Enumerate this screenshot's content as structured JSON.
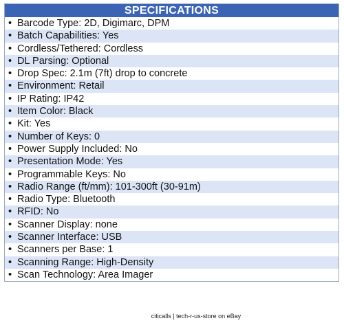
{
  "header": {
    "title": "SPECIFICATIONS"
  },
  "table": {
    "rows": [
      "Barcode Type: 2D, Digimarc, DPM",
      "Batch Capabilities: Yes",
      "Cordless/Tethered: Cordless",
      "DL Parsing: Optional",
      "Drop Spec: 2.1m (7ft) drop to concrete",
      "Environment: Retail",
      "IP Rating: IP42",
      "Item Color: Black",
      "Kit: Yes",
      "Number of Keys: 0",
      "Power Supply Included: No",
      "Presentation Mode: Yes",
      "Programmable Keys: No",
      "Radio Range (ft/mm): 101-300ft (30-91m)",
      "Radio Type: Bluetooth",
      "RFID: No",
      "Scanner Display: none",
      "Scanner Interface: USB",
      "Scanners per Base: 1",
      "Scanning Range: High-Density",
      "Scan Technology: Area Imager"
    ]
  },
  "footer": {
    "text": "citicalls | tech-r-us-store on eBay"
  }
}
